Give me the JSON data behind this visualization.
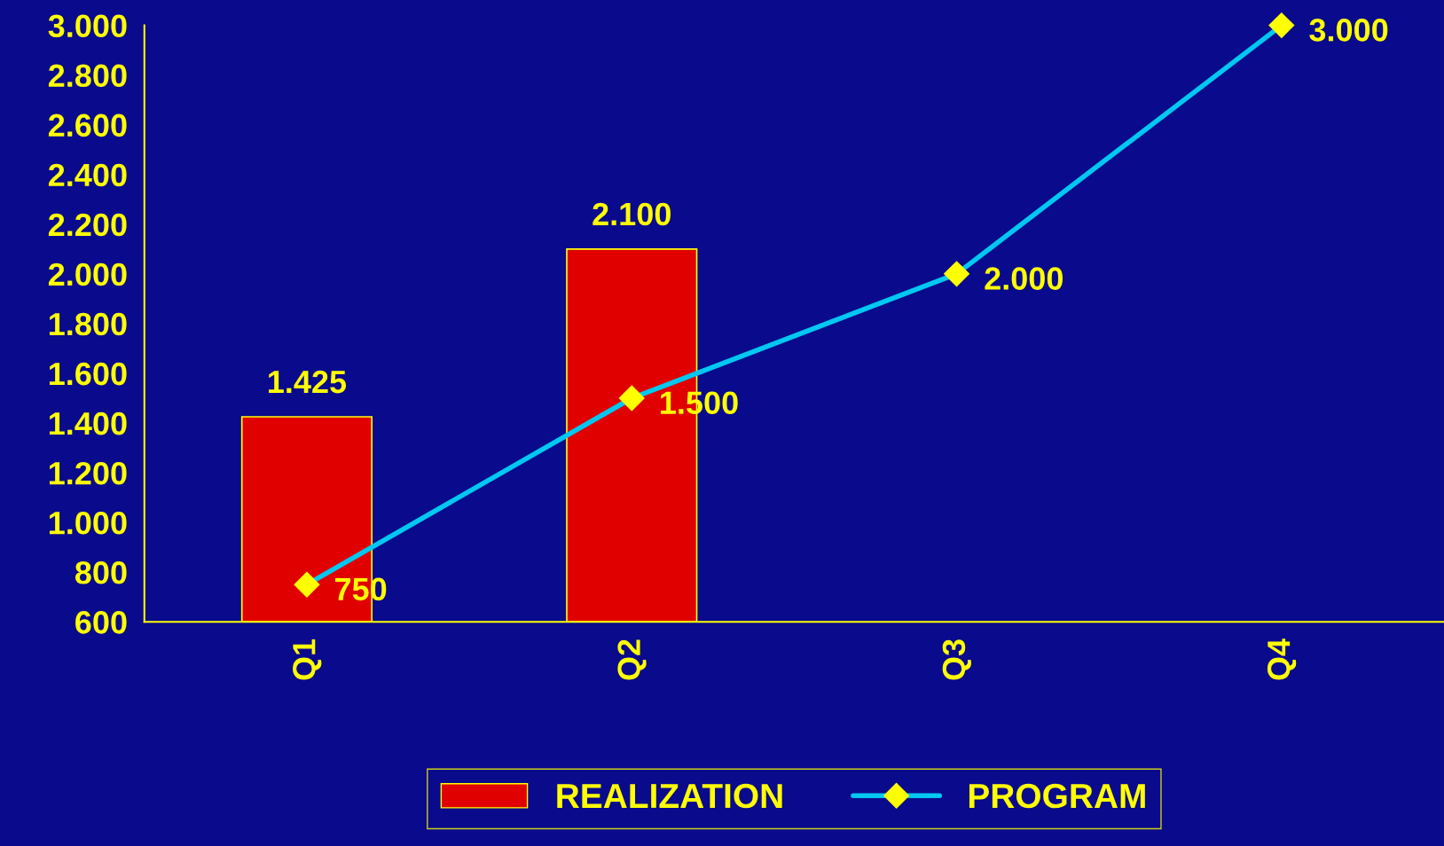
{
  "chart_data": {
    "type": "bar",
    "categories": [
      "Q1",
      "Q2",
      "Q3",
      "Q4"
    ],
    "series": [
      {
        "name": "REALIZATION",
        "color": "#e00000",
        "values": [
          1425,
          2100,
          null,
          null
        ],
        "value_labels": [
          "1.425",
          "2.100",
          null,
          null
        ]
      },
      {
        "name": "PROGRAM",
        "type": "line",
        "color": "#00c8f0",
        "marker": "diamond",
        "values": [
          750,
          1500,
          2000,
          3000
        ],
        "value_labels": [
          "750",
          "1.500",
          "2.000",
          "3.000"
        ]
      }
    ],
    "ylim": [
      600,
      3000
    ],
    "yticks": [
      {
        "value": 600,
        "label": "600"
      },
      {
        "value": 800,
        "label": "800"
      },
      {
        "value": 1000,
        "label": "1.000"
      },
      {
        "value": 1200,
        "label": "1.200"
      },
      {
        "value": 1400,
        "label": "1.400"
      },
      {
        "value": 1600,
        "label": "1.600"
      },
      {
        "value": 1800,
        "label": "1.800"
      },
      {
        "value": 2000,
        "label": "2.000"
      },
      {
        "value": 2200,
        "label": "2.200"
      },
      {
        "value": 2400,
        "label": "2.400"
      },
      {
        "value": 2600,
        "label": "2.600"
      },
      {
        "value": 2800,
        "label": "2.800"
      },
      {
        "value": 3000,
        "label": "3.000"
      }
    ],
    "grid": false,
    "legend": "bottom"
  }
}
